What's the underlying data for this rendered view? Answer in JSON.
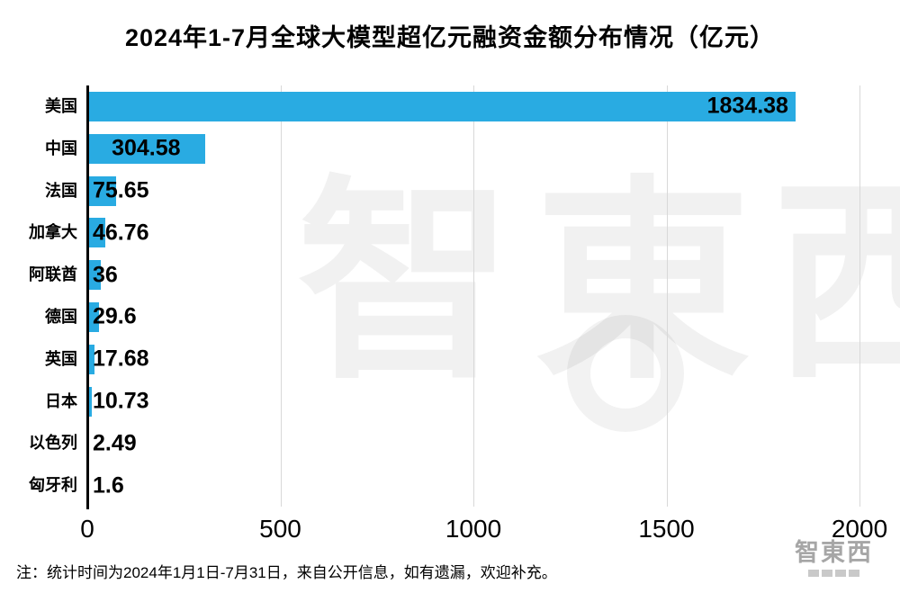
{
  "title": "2024年1-7月全球大模型超亿元融资金额分布情况（亿元）",
  "footer": {
    "note": "注：统计时间为2024年1月1日-7月31日，来自公开信息，如有遗漏，欢迎补充。"
  },
  "branding": {
    "watermark_logo": "智東西",
    "corner_logo": "智東西"
  },
  "chart_data": {
    "type": "bar",
    "orientation": "horizontal",
    "title": "2024年1-7月全球大模型超亿元融资金额分布情况（亿元）",
    "categories": [
      "美国",
      "中国",
      "法国",
      "加拿大",
      "阿联酋",
      "德国",
      "英国",
      "日本",
      "以色列",
      "匈牙利"
    ],
    "values": [
      1834.38,
      304.58,
      75.65,
      46.76,
      36,
      29.6,
      17.68,
      10.73,
      2.49,
      1.6
    ],
    "value_labels": [
      "1834.38",
      "304.58",
      "75.65",
      "46.76",
      "36",
      "29.6",
      "17.68",
      "10.73",
      "2.49",
      "1.6"
    ],
    "xlabel": "",
    "ylabel": "",
    "xlim": [
      0,
      2000
    ],
    "x_tick_values": [
      0,
      500,
      1000,
      1500,
      2000
    ],
    "x_ticks": [
      "0",
      "500",
      "1000",
      "1500",
      "2000"
    ],
    "bar_color": "#29abe2",
    "grid": true,
    "legend": false
  }
}
